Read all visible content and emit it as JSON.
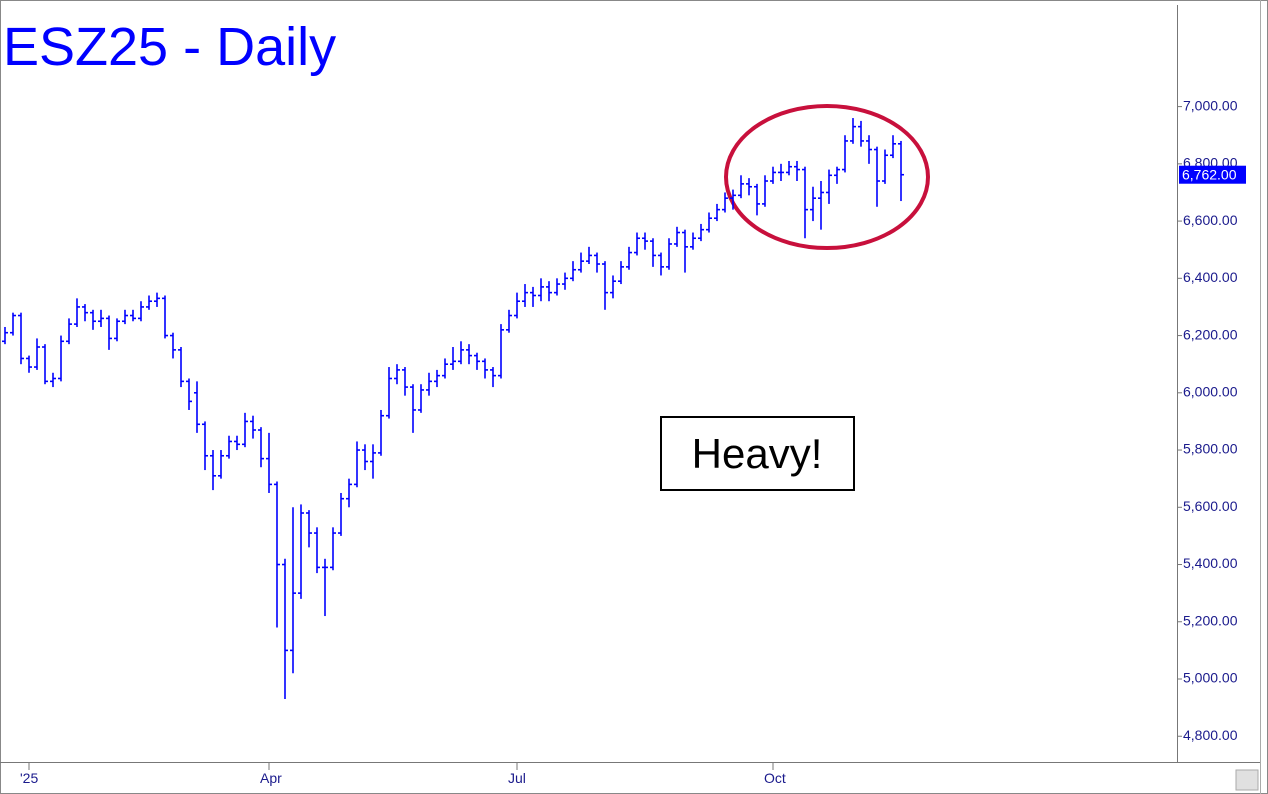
{
  "chart_data": {
    "type": "ohlc",
    "title": "ESZ25 - Daily",
    "annotation": "Heavy!",
    "color": "#0000ff",
    "last_price": {
      "value": 6762,
      "label": "6,762.00"
    },
    "categories": [
      null,
      null,
      null,
      "'25",
      null,
      null,
      null,
      null,
      null,
      null,
      null,
      null,
      null,
      null,
      null,
      null,
      null,
      null,
      null,
      null,
      null,
      null,
      null,
      null,
      null,
      null,
      null,
      null,
      null,
      null,
      null,
      null,
      null,
      "Apr",
      null,
      null,
      null,
      null,
      null,
      null,
      null,
      null,
      null,
      null,
      null,
      null,
      null,
      null,
      null,
      null,
      null,
      null,
      null,
      null,
      null,
      null,
      null,
      null,
      null,
      null,
      null,
      null,
      null,
      null,
      "Jul",
      null,
      null,
      null,
      null,
      null,
      null,
      null,
      null,
      null,
      null,
      null,
      null,
      null,
      null,
      null,
      null,
      null,
      null,
      null,
      null,
      null,
      null,
      null,
      null,
      null,
      null,
      null,
      null,
      null,
      null,
      null,
      "Oct",
      null,
      null,
      null,
      null,
      null,
      null,
      null,
      null,
      null,
      null,
      null,
      null,
      null,
      null,
      null,
      null
    ],
    "open": [
      6180,
      6210,
      6270,
      6120,
      6090,
      6160,
      6040,
      6050,
      6180,
      6240,
      6300,
      6280,
      6250,
      6260,
      6190,
      6250,
      6270,
      6260,
      6300,
      6320,
      6330,
      6200,
      6150,
      6040,
      6000,
      5890,
      5780,
      5710,
      5780,
      5830,
      5820,
      5900,
      5870,
      5770,
      5680,
      5400,
      5100,
      5300,
      5580,
      5510,
      5390,
      5390,
      5510,
      5630,
      5680,
      5800,
      5760,
      5790,
      5920,
      6050,
      6080,
      6020,
      5940,
      6010,
      6040,
      6060,
      6100,
      6110,
      6150,
      6130,
      6110,
      6080,
      6060,
      6220,
      6270,
      6320,
      6350,
      6340,
      6370,
      6350,
      6380,
      6400,
      6430,
      6460,
      6480,
      6450,
      6350,
      6390,
      6440,
      6490,
      6540,
      6530,
      6480,
      6440,
      6520,
      6560,
      6510,
      6540,
      6570,
      6610,
      6640,
      6680,
      6690,
      6730,
      6720,
      6660,
      6740,
      6770,
      6770,
      6790,
      6780,
      6640,
      6680,
      6700,
      6760,
      6780,
      6880,
      6930,
      6880,
      6850,
      6740,
      6830,
      6870
    ],
    "high": [
      6230,
      6280,
      6280,
      6130,
      6190,
      6170,
      6070,
      6200,
      6260,
      6330,
      6310,
      6290,
      6290,
      6270,
      6260,
      6290,
      6290,
      6320,
      6340,
      6350,
      6340,
      6210,
      6160,
      6050,
      6040,
      5900,
      5800,
      5800,
      5850,
      5850,
      5930,
      5920,
      5880,
      5860,
      5690,
      5420,
      5600,
      5610,
      5590,
      5530,
      5420,
      5530,
      5650,
      5700,
      5830,
      5820,
      5820,
      5940,
      6090,
      6100,
      6090,
      6030,
      6030,
      6070,
      6080,
      6120,
      6160,
      6180,
      6170,
      6140,
      6120,
      6090,
      6240,
      6290,
      6350,
      6380,
      6370,
      6400,
      6390,
      6400,
      6420,
      6460,
      6490,
      6510,
      6490,
      6460,
      6410,
      6460,
      6510,
      6560,
      6560,
      6540,
      6490,
      6540,
      6580,
      6570,
      6560,
      6590,
      6630,
      6660,
      6700,
      6710,
      6760,
      6750,
      6730,
      6760,
      6790,
      6800,
      6810,
      6810,
      6790,
      6720,
      6740,
      6780,
      6790,
      6900,
      6960,
      6950,
      6900,
      6860,
      6850,
      6900,
      6880
    ],
    "low": [
      6170,
      6200,
      6100,
      6070,
      6080,
      6030,
      6020,
      6040,
      6170,
      6230,
      6250,
      6220,
      6230,
      6150,
      6180,
      6240,
      6250,
      6250,
      6290,
      6300,
      6190,
      6120,
      6020,
      5940,
      5860,
      5730,
      5660,
      5700,
      5770,
      5800,
      5810,
      5840,
      5740,
      5650,
      5180,
      4930,
      5020,
      5280,
      5460,
      5370,
      5220,
      5380,
      5500,
      5600,
      5670,
      5730,
      5700,
      5780,
      5910,
      6030,
      5990,
      5860,
      5930,
      5990,
      6020,
      6050,
      6080,
      6100,
      6100,
      6080,
      6050,
      6020,
      6050,
      6210,
      6260,
      6300,
      6300,
      6320,
      6320,
      6340,
      6360,
      6390,
      6420,
      6450,
      6420,
      6290,
      6330,
      6380,
      6430,
      6480,
      6500,
      6440,
      6410,
      6430,
      6510,
      6420,
      6500,
      6530,
      6560,
      6600,
      6630,
      6640,
      6680,
      6690,
      6620,
      6650,
      6730,
      6740,
      6760,
      6740,
      6540,
      6600,
      6570,
      6660,
      6730,
      6770,
      6870,
      6860,
      6800,
      6650,
      6730,
      6820,
      6670
    ],
    "close": [
      6210,
      6270,
      6120,
      6090,
      6160,
      6040,
      6050,
      6180,
      6240,
      6300,
      6280,
      6250,
      6260,
      6190,
      6250,
      6270,
      6260,
      6300,
      6320,
      6330,
      6200,
      6150,
      6040,
      5970,
      5890,
      5780,
      5710,
      5780,
      5830,
      5820,
      5900,
      5870,
      5770,
      5680,
      5400,
      5100,
      5300,
      5580,
      5510,
      5390,
      5390,
      5510,
      5630,
      5680,
      5800,
      5760,
      5790,
      5920,
      6050,
      6080,
      6020,
      5940,
      6010,
      6040,
      6060,
      6100,
      6110,
      6150,
      6130,
      6110,
      6080,
      6060,
      6220,
      6270,
      6320,
      6350,
      6340,
      6370,
      6350,
      6380,
      6400,
      6430,
      6460,
      6480,
      6450,
      6350,
      6390,
      6440,
      6490,
      6540,
      6530,
      6480,
      6440,
      6520,
      6560,
      6510,
      6540,
      6570,
      6610,
      6640,
      6680,
      6690,
      6730,
      6720,
      6660,
      6740,
      6770,
      6770,
      6790,
      6780,
      6640,
      6680,
      6700,
      6760,
      6780,
      6880,
      6930,
      6880,
      6850,
      6740,
      6830,
      6870,
      6762
    ],
    "ylim": [
      4710,
      7355
    ],
    "yticks": [
      {
        "value": 4800,
        "label": "4,800.00"
      },
      {
        "value": 5000,
        "label": "5,000.00"
      },
      {
        "value": 5200,
        "label": "5,200.00"
      },
      {
        "value": 5400,
        "label": "5,400.00"
      },
      {
        "value": 5600,
        "label": "5,600.00"
      },
      {
        "value": 5800,
        "label": "5,800.00"
      },
      {
        "value": 6000,
        "label": "6,000.00"
      },
      {
        "value": 6200,
        "label": "6,200.00"
      },
      {
        "value": 6400,
        "label": "6,400.00"
      },
      {
        "value": 6600,
        "label": "6,600.00"
      },
      {
        "value": 6800,
        "label": "6,800.00"
      },
      {
        "value": 7000,
        "label": "7,000.00"
      }
    ]
  }
}
